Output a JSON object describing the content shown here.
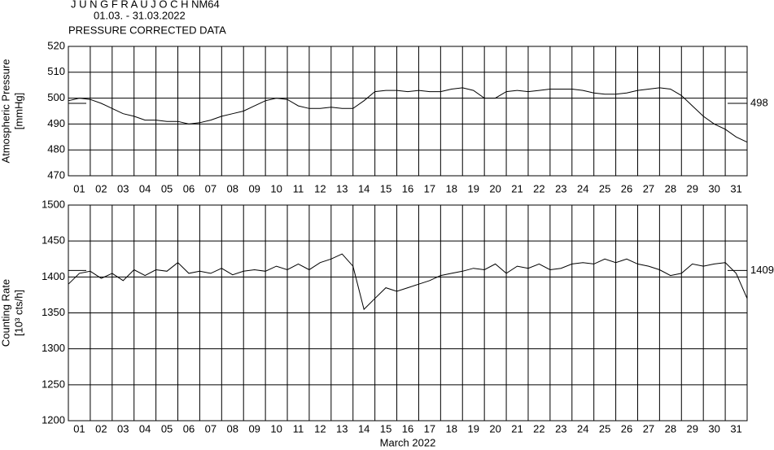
{
  "header": {
    "station": "J U N G F R A U J O C H  NM64",
    "period": "01.03. - 31.03.2022",
    "subtitle": "PRESSURE CORRECTED DATA",
    "x_label": "March 2022"
  },
  "chart_data": [
    {
      "type": "line",
      "y_label": [
        "Atmospheric Pressure",
        "[mmHg]"
      ],
      "reference": 498,
      "x": [
        0.5,
        1,
        1.5,
        2,
        2.5,
        3,
        3.5,
        4,
        4.5,
        5,
        5.5,
        6,
        6.5,
        7,
        7.5,
        8,
        8.5,
        9,
        9.5,
        10,
        10.5,
        11,
        11.5,
        12,
        12.5,
        13,
        13.5,
        14,
        14.5,
        15,
        15.5,
        16,
        16.5,
        17,
        17.5,
        18,
        18.5,
        19,
        19.5,
        20,
        20.5,
        21,
        21.5,
        22,
        22.5,
        23,
        23.5,
        24,
        24.5,
        25,
        25.5,
        26,
        26.5,
        27,
        27.5,
        28,
        28.5,
        29,
        29.5,
        30,
        30.5,
        31,
        31.5
      ],
      "series": [
        {
          "color": "#000000",
          "values": [
            499,
            500,
            499.5,
            498,
            496,
            494,
            493,
            491.5,
            491.5,
            491,
            491,
            490,
            490.5,
            491.5,
            493,
            494,
            495,
            497,
            499,
            500,
            499.5,
            497,
            496,
            496,
            496.5,
            496,
            496,
            499,
            502.5,
            503,
            503,
            502.5,
            503,
            502.5,
            502.5,
            503.5,
            504,
            503,
            500,
            500,
            502.5,
            503,
            502.5,
            503,
            503.5,
            503.5,
            503.5,
            503,
            502,
            501.5,
            501.5,
            502,
            503,
            503.5,
            504,
            503.5,
            501,
            497,
            493,
            490,
            488,
            485,
            483
          ]
        }
      ],
      "xlim": [
        0.5,
        31.5
      ],
      "xticks": [
        {
          "value": 1,
          "label": "01"
        },
        {
          "value": 2,
          "label": "02"
        },
        {
          "value": 3,
          "label": "03"
        },
        {
          "value": 4,
          "label": "04"
        },
        {
          "value": 5,
          "label": "05"
        },
        {
          "value": 6,
          "label": "06"
        },
        {
          "value": 7,
          "label": "07"
        },
        {
          "value": 8,
          "label": "08"
        },
        {
          "value": 9,
          "label": "09"
        },
        10,
        11,
        12,
        13,
        14,
        15,
        16,
        17,
        18,
        19,
        20,
        21,
        22,
        23,
        24,
        25,
        26,
        27,
        28,
        29,
        30,
        31
      ],
      "ylim": [
        470,
        520
      ],
      "yticks": [
        470,
        480,
        490,
        500,
        510,
        520
      ],
      "grid": true
    },
    {
      "type": "line",
      "y_label": [
        "Counting Rate",
        "[10³ cts/h]"
      ],
      "reference": 1409,
      "x": [
        0.5,
        1,
        1.5,
        2,
        2.5,
        3,
        3.5,
        4,
        4.5,
        5,
        5.5,
        6,
        6.5,
        7,
        7.5,
        8,
        8.5,
        9,
        9.5,
        10,
        10.5,
        11,
        11.5,
        12,
        12.5,
        13,
        13.5,
        14,
        14.5,
        15,
        15.5,
        16,
        16.5,
        17,
        17.5,
        18,
        18.5,
        19,
        19.5,
        20,
        20.5,
        21,
        21.5,
        22,
        22.5,
        23,
        23.5,
        24,
        24.5,
        25,
        25.5,
        26,
        26.5,
        27,
        27.5,
        28,
        28.5,
        29,
        29.5,
        30,
        30.5,
        31,
        31.5
      ],
      "series": [
        {
          "color": "#000000",
          "values": [
            1390,
            1405,
            1408,
            1398,
            1405,
            1395,
            1410,
            1402,
            1410,
            1408,
            1420,
            1405,
            1408,
            1405,
            1412,
            1403,
            1408,
            1410,
            1408,
            1415,
            1410,
            1418,
            1410,
            1420,
            1425,
            1432,
            1415,
            1355,
            1370,
            1385,
            1380,
            1385,
            1390,
            1395,
            1402,
            1405,
            1408,
            1412,
            1410,
            1418,
            1405,
            1415,
            1412,
            1418,
            1410,
            1412,
            1418,
            1420,
            1418,
            1425,
            1420,
            1425,
            1418,
            1415,
            1410,
            1402,
            1405,
            1418,
            1415,
            1418,
            1420,
            1405,
            1370
          ]
        }
      ],
      "xlim": [
        0.5,
        31.5
      ],
      "xticks": [
        {
          "value": 1,
          "label": "01"
        },
        {
          "value": 2,
          "label": "02"
        },
        {
          "value": 3,
          "label": "03"
        },
        {
          "value": 4,
          "label": "04"
        },
        {
          "value": 5,
          "label": "05"
        },
        {
          "value": 6,
          "label": "06"
        },
        {
          "value": 7,
          "label": "07"
        },
        {
          "value": 8,
          "label": "08"
        },
        {
          "value": 9,
          "label": "09"
        },
        10,
        11,
        12,
        13,
        14,
        15,
        16,
        17,
        18,
        19,
        20,
        21,
        22,
        23,
        24,
        25,
        26,
        27,
        28,
        29,
        30,
        31
      ],
      "ylim": [
        1200,
        1500
      ],
      "yticks": [
        1200,
        1250,
        1300,
        1350,
        1400,
        1450,
        1500
      ],
      "grid": true
    }
  ]
}
